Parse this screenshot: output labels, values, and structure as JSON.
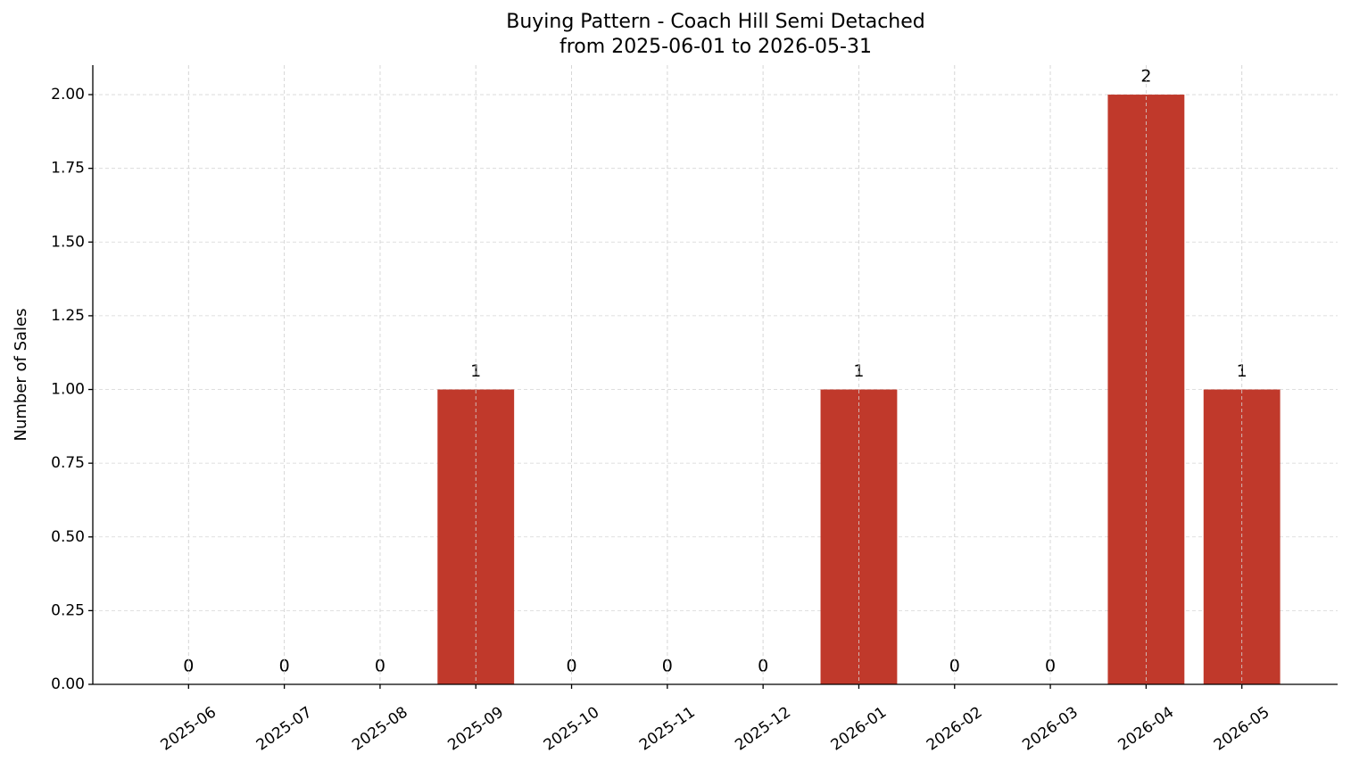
{
  "chart_data": {
    "type": "bar",
    "title": "Buying Pattern - Coach Hill Semi Detached",
    "subtitle": "from 2025-06-01 to 2026-05-31",
    "ylabel": "Number of Sales",
    "categories": [
      "2025-06",
      "2025-07",
      "2025-08",
      "2025-09",
      "2025-10",
      "2025-11",
      "2025-12",
      "2026-01",
      "2026-02",
      "2026-03",
      "2026-04",
      "2026-05"
    ],
    "values": [
      0,
      0,
      0,
      1,
      0,
      0,
      0,
      1,
      0,
      0,
      2,
      1
    ],
    "color": "#c0392b",
    "ylim": [
      0,
      2.1
    ],
    "yticks": [
      {
        "value": 0,
        "label": "0.00"
      },
      {
        "value": 0.25,
        "label": "0.25"
      },
      {
        "value": 0.5,
        "label": "0.50"
      },
      {
        "value": 0.75,
        "label": "0.75"
      },
      {
        "value": 1,
        "label": "1.00"
      },
      {
        "value": 1.25,
        "label": "1.25"
      },
      {
        "value": 1.5,
        "label": "1.50"
      },
      {
        "value": 1.75,
        "label": "1.75"
      },
      {
        "value": 2,
        "label": "2.00"
      }
    ],
    "grid": true
  }
}
